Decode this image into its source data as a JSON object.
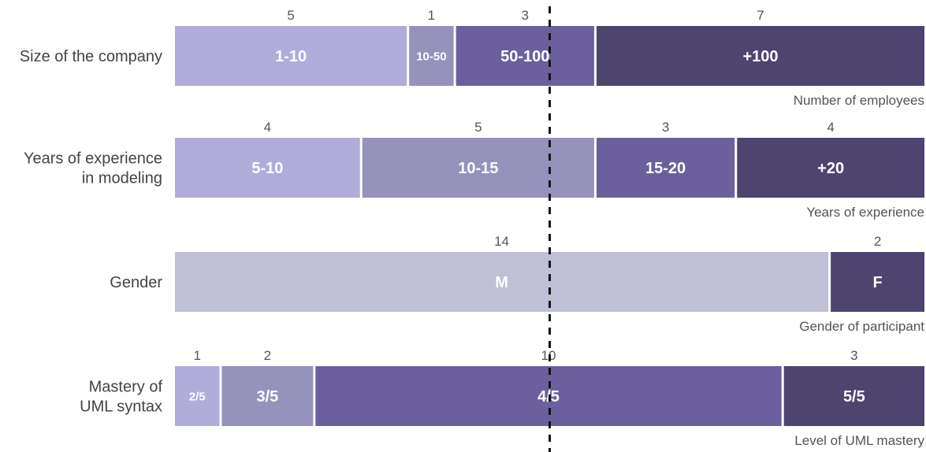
{
  "chart_data": {
    "type": "bar",
    "stacked": true,
    "orientation": "horizontal",
    "normalized": true,
    "title": "",
    "reference_line": "dashed vertical line at the midpoint",
    "colors": {
      "level1": "#b0addb",
      "level2": "#9592bb",
      "level3": "#6b609d",
      "level4": "#4e4470",
      "gender_m": "#bfc0d6",
      "gender_f": "#4e4470"
    },
    "rows": [
      {
        "label_lines": [
          "Size of the company"
        ],
        "caption": "Number of employees",
        "segments": [
          {
            "category": "1-10",
            "value": 5,
            "color": "#b0addb"
          },
          {
            "category": "10-50",
            "value": 1,
            "color": "#9592bb"
          },
          {
            "category": "50-100",
            "value": 3,
            "color": "#6b609d"
          },
          {
            "category": "+100",
            "value": 7,
            "color": "#4e4470"
          }
        ]
      },
      {
        "label_lines": [
          "Years of experience",
          "in modeling"
        ],
        "caption": "Years of experience",
        "segments": [
          {
            "category": "5-10",
            "value": 4,
            "color": "#b0addb"
          },
          {
            "category": "10-15",
            "value": 5,
            "color": "#9592bb"
          },
          {
            "category": "15-20",
            "value": 3,
            "color": "#6b609d"
          },
          {
            "category": "+20",
            "value": 4,
            "color": "#4e4470"
          }
        ]
      },
      {
        "label_lines": [
          "Gender"
        ],
        "caption": "Gender of participant",
        "segments": [
          {
            "category": "M",
            "value": 14,
            "color": "#bfc0d6"
          },
          {
            "category": "F",
            "value": 2,
            "color": "#4e4470"
          }
        ]
      },
      {
        "label_lines": [
          "Mastery of",
          "UML syntax"
        ],
        "caption": "Level of UML mastery",
        "segments": [
          {
            "category": "2/5",
            "value": 1,
            "color": "#b0addb"
          },
          {
            "category": "3/5",
            "value": 2,
            "color": "#9592bb"
          },
          {
            "category": "4/5",
            "value": 10,
            "color": "#6b609d"
          },
          {
            "category": "5/5",
            "value": 3,
            "color": "#4e4470"
          }
        ]
      }
    ]
  }
}
